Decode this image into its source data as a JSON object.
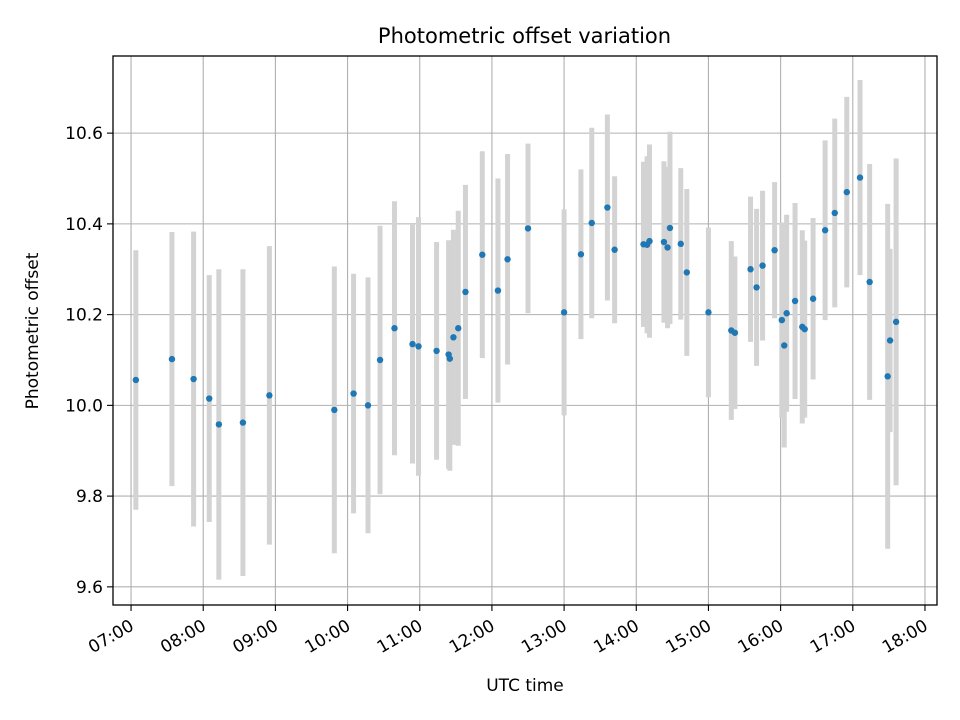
{
  "chart_data": {
    "type": "scatter",
    "title": "Photometric offset variation",
    "xlabel": "UTC time",
    "ylabel": "Photometric offset",
    "grid": true,
    "xlim": [
      "06:45",
      "18:10"
    ],
    "ylim": [
      9.56,
      10.77
    ],
    "x_ticks": [
      "07:00",
      "08:00",
      "09:00",
      "10:00",
      "11:00",
      "12:00",
      "13:00",
      "14:00",
      "15:00",
      "16:00",
      "17:00",
      "18:00"
    ],
    "y_ticks": [
      "9.6",
      "9.8",
      "10.0",
      "10.2",
      "10.4",
      "10.6"
    ],
    "colors": {
      "point": "#1f77b4",
      "errorbar": "#d3d3d3",
      "grid": "#b0b0b0"
    },
    "series": [
      {
        "x": [
          "07:04",
          "07:34",
          "07:52",
          "08:05",
          "08:13",
          "08:33",
          "08:55",
          "09:49",
          "10:05",
          "10:17",
          "10:27",
          "10:39",
          "10:54",
          "10:59",
          "11:14",
          "11:24",
          "11:25",
          "11:28",
          "11:32",
          "11:38",
          "11:52",
          "12:05",
          "12:13",
          "12:30",
          "13:00",
          "13:14",
          "13:23",
          "13:36",
          "13:42",
          "14:06",
          "14:09",
          "14:11",
          "14:23",
          "14:26",
          "14:28",
          "14:37",
          "14:42",
          "15:00",
          "15:19",
          "15:22",
          "15:35",
          "15:40",
          "15:45",
          "15:55",
          "16:01",
          "16:03",
          "16:05",
          "16:12",
          "16:18",
          "16:20",
          "16:27",
          "16:37",
          "16:45",
          "16:55",
          "17:06",
          "17:14",
          "17:29",
          "17:31",
          "17:36"
        ],
        "y": [
          10.056,
          10.102,
          10.058,
          10.015,
          9.958,
          9.962,
          10.022,
          9.99,
          10.026,
          10.0,
          10.1,
          10.17,
          10.135,
          10.13,
          10.12,
          10.112,
          10.103,
          10.15,
          10.17,
          10.25,
          10.332,
          10.253,
          10.322,
          10.39,
          10.205,
          10.333,
          10.402,
          10.436,
          10.343,
          10.355,
          10.354,
          10.362,
          10.36,
          10.348,
          10.391,
          10.356,
          10.293,
          10.205,
          10.165,
          10.16,
          10.3,
          10.26,
          10.308,
          10.342,
          10.188,
          10.132,
          10.203,
          10.23,
          10.173,
          10.168,
          10.235,
          10.386,
          10.424,
          10.47,
          10.502,
          10.272,
          10.064,
          10.143,
          10.184
        ],
        "yerr": [
          0.286,
          0.28,
          0.325,
          0.272,
          0.342,
          0.338,
          0.329,
          0.316,
          0.264,
          0.282,
          0.296,
          0.28,
          0.263,
          0.285,
          0.24,
          0.252,
          0.247,
          0.237,
          0.259,
          0.236,
          0.228,
          0.247,
          0.232,
          0.187,
          0.227,
          0.187,
          0.21,
          0.205,
          0.162,
          0.182,
          0.195,
          0.213,
          0.178,
          0.178,
          0.212,
          0.167,
          0.184,
          0.187,
          0.197,
          0.168,
          0.16,
          0.173,
          0.165,
          0.15,
          0.215,
          0.225,
          0.217,
          0.216,
          0.213,
          0.195,
          0.178,
          0.198,
          0.208,
          0.21,
          0.215,
          0.26,
          0.38,
          0.202,
          0.36
        ]
      }
    ]
  }
}
